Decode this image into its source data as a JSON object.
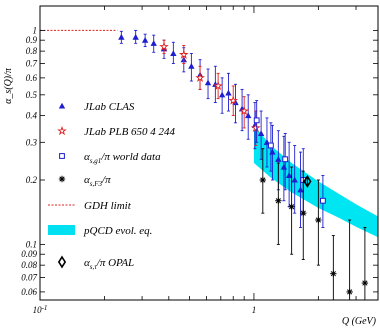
{
  "chart_data": {
    "type": "scatter",
    "title": "",
    "xlabel": "Q (GeV)",
    "ylabel": "α_s(Q)/π",
    "x_scale": "log",
    "y_scale": "log",
    "xlim": [
      0.1,
      3.8
    ],
    "ylim": [
      0.055,
      1.3
    ],
    "x_ticks": [
      {
        "value": 0.1,
        "label": "10",
        "sup": "-1"
      },
      {
        "value": 1,
        "label": "1",
        "sup": ""
      }
    ],
    "y_ticks": [
      {
        "value": 1,
        "label": "1"
      },
      {
        "value": 0.9,
        "label": "0.9"
      },
      {
        "value": 0.8,
        "label": "0.8"
      },
      {
        "value": 0.7,
        "label": "0.7"
      },
      {
        "value": 0.6,
        "label": "0.6"
      },
      {
        "value": 0.5,
        "label": "0.5"
      },
      {
        "value": 0.4,
        "label": "0.4"
      },
      {
        "value": 0.3,
        "label": "0.3"
      },
      {
        "value": 0.2,
        "label": "0.2"
      },
      {
        "value": 0.1,
        "label": "0.1"
      },
      {
        "value": 0.09,
        "label": "0.09"
      },
      {
        "value": 0.08,
        "label": "0.08"
      },
      {
        "value": 0.07,
        "label": "0.07"
      },
      {
        "value": 0.06,
        "label": "0.06"
      }
    ],
    "legend_position": "left",
    "legend": [
      {
        "key": "clas",
        "label": "JLab CLAS",
        "marker": "triangle",
        "color": "#1f1fd0"
      },
      {
        "key": "plb",
        "label": "JLab PLB 650 4 244",
        "marker": "star-open",
        "color": "#e02020"
      },
      {
        "key": "g1",
        "label": "α",
        "sub": "s,g1",
        "after": "/π world data",
        "marker": "square-open",
        "color": "#1f1fd0"
      },
      {
        "key": "f3",
        "label": "α",
        "sub": "s,F3",
        "after": "/π",
        "marker": "asterisk",
        "color": "#000000"
      },
      {
        "key": "gdh",
        "label": "GDH limit",
        "marker": "dashed-line",
        "color": "#e02020"
      },
      {
        "key": "pqcd",
        "label": "pQCD evol. eq.",
        "marker": "band",
        "color": "#00e0f0"
      },
      {
        "key": "opal",
        "label": "α",
        "sub": "s,τ",
        "after": "/π OPAL",
        "marker": "diamond-open",
        "color": "#000000"
      }
    ],
    "gdh_limit": {
      "y": 1.0,
      "x_range": [
        0.1,
        0.23
      ]
    },
    "pqcd_band": [
      {
        "x": 1.0,
        "y_low": 0.24,
        "y_high": 0.36
      },
      {
        "x": 1.2,
        "y_low": 0.205,
        "y_high": 0.29
      },
      {
        "x": 1.5,
        "y_low": 0.175,
        "y_high": 0.24
      },
      {
        "x": 2.0,
        "y_low": 0.148,
        "y_high": 0.197
      },
      {
        "x": 2.5,
        "y_low": 0.133,
        "y_high": 0.172
      },
      {
        "x": 3.0,
        "y_low": 0.121,
        "y_high": 0.154
      },
      {
        "x": 3.8,
        "y_low": 0.108,
        "y_high": 0.135
      }
    ],
    "series": [
      {
        "name": "JLab CLAS",
        "marker": "triangle",
        "color": "#1f1fd0",
        "points": [
          {
            "x": 0.24,
            "y": 0.93,
            "lo": 0.87,
            "hi": 0.99
          },
          {
            "x": 0.28,
            "y": 0.93,
            "lo": 0.87,
            "hi": 1.0
          },
          {
            "x": 0.31,
            "y": 0.9,
            "lo": 0.84,
            "hi": 0.96
          },
          {
            "x": 0.34,
            "y": 0.87,
            "lo": 0.79,
            "hi": 0.95
          },
          {
            "x": 0.38,
            "y": 0.82,
            "lo": 0.74,
            "hi": 0.9
          },
          {
            "x": 0.42,
            "y": 0.78,
            "lo": 0.7,
            "hi": 0.88
          },
          {
            "x": 0.47,
            "y": 0.73,
            "lo": 0.64,
            "hi": 0.83
          },
          {
            "x": 0.51,
            "y": 0.68,
            "lo": 0.58,
            "hi": 0.78
          },
          {
            "x": 0.56,
            "y": 0.62,
            "lo": 0.53,
            "hi": 0.73
          },
          {
            "x": 0.61,
            "y": 0.57,
            "lo": 0.48,
            "hi": 0.66
          },
          {
            "x": 0.66,
            "y": 0.56,
            "lo": 0.46,
            "hi": 0.68
          },
          {
            "x": 0.71,
            "y": 0.5,
            "lo": 0.41,
            "hi": 0.6
          },
          {
            "x": 0.76,
            "y": 0.51,
            "lo": 0.42,
            "hi": 0.63
          },
          {
            "x": 0.82,
            "y": 0.46,
            "lo": 0.37,
            "hi": 0.56
          },
          {
            "x": 0.88,
            "y": 0.43,
            "lo": 0.34,
            "hi": 0.53
          },
          {
            "x": 0.94,
            "y": 0.4,
            "lo": 0.31,
            "hi": 0.5
          },
          {
            "x": 1.01,
            "y": 0.36,
            "lo": 0.28,
            "hi": 0.46
          },
          {
            "x": 1.08,
            "y": 0.33,
            "lo": 0.25,
            "hi": 0.42
          },
          {
            "x": 1.15,
            "y": 0.3,
            "lo": 0.23,
            "hi": 0.39
          },
          {
            "x": 1.22,
            "y": 0.27,
            "lo": 0.2,
            "hi": 0.36
          },
          {
            "x": 1.3,
            "y": 0.25,
            "lo": 0.18,
            "hi": 0.34
          },
          {
            "x": 1.38,
            "y": 0.23,
            "lo": 0.16,
            "hi": 0.32
          },
          {
            "x": 1.46,
            "y": 0.21,
            "lo": 0.15,
            "hi": 0.3
          },
          {
            "x": 1.55,
            "y": 0.2,
            "lo": 0.14,
            "hi": 0.29
          },
          {
            "x": 1.65,
            "y": 0.18,
            "lo": 0.12,
            "hi": 0.27
          }
        ]
      },
      {
        "name": "JLab PLB 650 4 244",
        "marker": "star-open",
        "color": "#e02020",
        "points": [
          {
            "x": 0.38,
            "y": 0.84,
            "lo": 0.78,
            "hi": 0.9
          },
          {
            "x": 0.47,
            "y": 0.77,
            "lo": 0.7,
            "hi": 0.85
          },
          {
            "x": 0.56,
            "y": 0.6,
            "lo": 0.53,
            "hi": 0.68
          },
          {
            "x": 0.68,
            "y": 0.55,
            "lo": 0.48,
            "hi": 0.63
          },
          {
            "x": 0.8,
            "y": 0.47,
            "lo": 0.4,
            "hi": 0.55
          },
          {
            "x": 0.9,
            "y": 0.42,
            "lo": 0.35,
            "hi": 0.49
          },
          {
            "x": 1.02,
            "y": 0.35,
            "lo": 0.29,
            "hi": 0.42
          }
        ]
      },
      {
        "name": "α s,g1 /π world data",
        "marker": "square-open",
        "color": "#1f1fd0",
        "points": [
          {
            "x": 1.03,
            "y": 0.38,
            "lo": 0.3,
            "hi": 0.47
          },
          {
            "x": 1.2,
            "y": 0.29,
            "lo": 0.22,
            "hi": 0.37
          },
          {
            "x": 1.4,
            "y": 0.25,
            "lo": 0.18,
            "hi": 0.33
          },
          {
            "x": 1.7,
            "y": 0.2,
            "lo": 0.14,
            "hi": 0.28
          },
          {
            "x": 2.1,
            "y": 0.16,
            "lo": 0.12,
            "hi": 0.21
          }
        ]
      },
      {
        "name": "α s,F3 /π",
        "marker": "asterisk",
        "color": "#000000",
        "points": [
          {
            "x": 1.1,
            "y": 0.2,
            "lo": 0.14,
            "hi": 0.28
          },
          {
            "x": 1.3,
            "y": 0.16,
            "lo": 0.1,
            "hi": 0.24
          },
          {
            "x": 1.5,
            "y": 0.15,
            "lo": 0.09,
            "hi": 0.23
          },
          {
            "x": 1.7,
            "y": 0.14,
            "lo": 0.085,
            "hi": 0.22
          },
          {
            "x": 2.0,
            "y": 0.13,
            "lo": 0.08,
            "hi": 0.2
          },
          {
            "x": 2.35,
            "y": 0.073,
            "lo": 0.045,
            "hi": 0.11
          },
          {
            "x": 2.8,
            "y": 0.06,
            "lo": 0.04,
            "hi": 0.13
          },
          {
            "x": 3.3,
            "y": 0.066,
            "lo": 0.045,
            "hi": 0.12
          }
        ]
      },
      {
        "name": "α s,τ /π OPAL",
        "marker": "diamond-open",
        "color": "#000000",
        "points": [
          {
            "x": 1.777,
            "y": 0.197,
            "lo": 0.19,
            "hi": 0.204
          }
        ]
      }
    ]
  }
}
